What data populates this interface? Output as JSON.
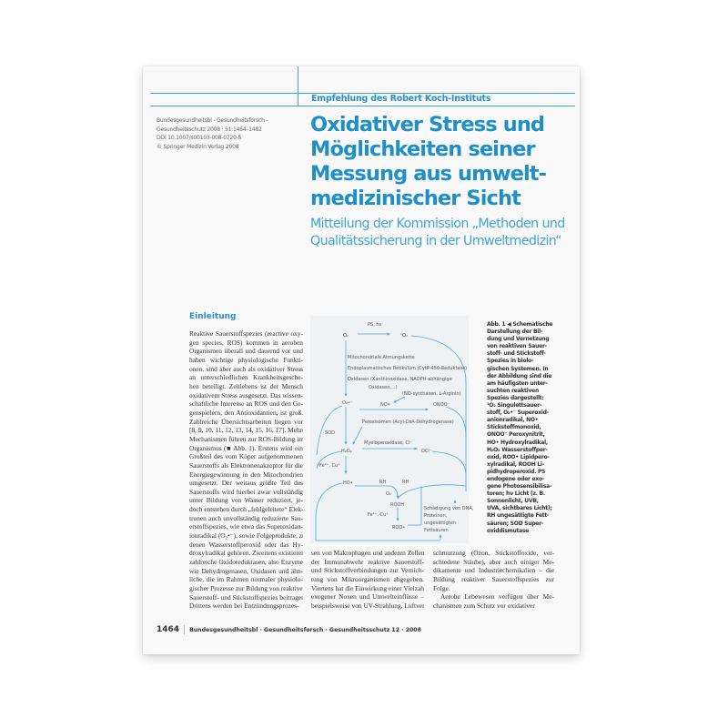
{
  "header": {
    "rubric": "Empfehlung des Robert Koch-Instituts",
    "meta_lines": [
      "Bundesgesundheitsbl - Gesundheitsforsch -",
      "Gesundheitsschutz 2008 · 51:1464–1482",
      "DOI 10.1007/s00103-008-0720-5",
      "© Springer Medizin Verlag 2008"
    ],
    "title": "Oxidativer Stress und Möglichkeiten seiner Messung aus umwelt-medizinischer Sicht",
    "title_lines": [
      "Oxidativer Stress und",
      "Möglichkeiten seiner",
      "Messung aus umwelt-",
      "medizinischer Sicht"
    ],
    "subtitle_lines": [
      "Mitteilung der Kommission „Methoden und",
      "Qualitätssicherung in der Umweltmedizin“"
    ]
  },
  "section_heading": "Einleitung",
  "body_column_1": [
    "Reaktive Sauerstoffspezies (reactive oxy-",
    "gen species, ROS) kommen in aeroben",
    "Organismen überall und dauernd vor und",
    "haben wichtige physiologische Funkti-",
    "onen, sind aber auch als oxidativer Stress",
    "an unterschiedlichen Krankheitsgesche-",
    "hen beteiligt. Zeitlebens ist der Mensch",
    "oxidativem Stress ausgesetzt. Das wissen-",
    "schaftliche Interesse an ROS und den Ge-",
    "genspielern, den Antioxidantien, ist groß.",
    "Zahlreiche Übersichtsarbeiten liegen vor",
    "[8, 9, 10, 11, 12, 13, 14, 15, 16, 17]. Mehrere",
    "Mechanismen führen zur ROS-Bildung im",
    "Organismus (■ Abb. 1). Erstens wird ein",
    "Großteil des vom Köper aufgenommenen",
    "Sauerstoffs als Elektronenakzeptor für die",
    "Energiegewinnung in den Mitochondrien",
    "umgesetzt. Der weitaus größte Teil des",
    "Sauerstoffs wird hierbei zwar vollständig",
    "unter Bildung von Wasser reduziert, je-",
    "doch entstehen durch „fehlgeleitete“ Elek-",
    "tronen auch unvollständig reduzierte Sau-",
    "erstoffspezies, wie etwa das Superoxidan-",
    "ionradikal (O₂•⁻), sowie Folgeprodukte, zu",
    "denen Wasserstoffperoxid oder das Hy-",
    "droxylradikal gehören. Zweitens existieren",
    "zahlreiche Oxidoreduktasen, also Enzyme",
    "wie Dehydrogenasen, Oxidasen und ähn-",
    "liche, die im Rahmen normaler physiolo-",
    "gischer Prozesse zur Bildung von reaktiven",
    "Sauerstoff- und Stickstoffspezies beitragen.",
    "Drittens werden bei Entzündungsprozes-"
  ],
  "body_column_2": [
    "sen von Makrophagen und anderen Zellen",
    "der Immunabwehr reaktive Sauerstoff-",
    "und Stickstoffverbindungen zur Vernich-",
    "tung von Mikroorganismen abgegeben.",
    "Viertens hat die Einwirkung einer Vielzahl",
    "exogener Noxen und Umwelteinflüsse –",
    "beispielsweise von UV-Strahlung, Luftver-"
  ],
  "body_column_3": [
    "schmutzung (Ozon, Stickstoffoxide, ver-",
    "schiedene Stäube), aber auch einiger Me-",
    "dikamente und Industriechemikalien – die",
    "Bildung reaktiver Sauerstoffspezies zur",
    "Folge.",
    "Aerobe Lebewesen verfügen über Me-",
    "chanismen zum Schutz vor oxidativer"
  ],
  "figure": {
    "labels": {
      "ps_hv": "PS, hν",
      "o2": "O₂",
      "singlet_o2": "¹O₂",
      "mito": "Mitochondriale Atmungskette",
      "er": "Endoplasmatisches Retikulum (CytP-450-Reduktase)",
      "oxidasen1": "Oxidasen (Xanthinoxidase, NADPH-abhängige",
      "oxidasen2": "Oxidasen,...)",
      "no_synth": "(NO-synthasen, L-Arginin)",
      "superoxide": "O₂•⁻",
      "no": "NO•",
      "onoo": "ONOO⁻",
      "peroxisomen": "Peroxisomen (Acyl-CoA-Dehydrogenase)",
      "sod": "SOD",
      "h2o2": "H₂O₂",
      "myelo": "Myeloperoxidase, Cl⁻",
      "ocl": "OCl⁻",
      "fe_cu_1": "Fe²⁺, Cu⁺",
      "ho": "HO•",
      "rh1": "RH",
      "rh2": "RH",
      "o2_b": "O₂",
      "rooh": "ROOH",
      "fe_cu_2": "Fe²⁺, Cu⁺",
      "roo": "ROO•",
      "damage": [
        "Schädigung von DNA,",
        "Proteinen,",
        "ungesättigten",
        "Fettsäuren"
      ]
    },
    "line_color": "#4aaad8"
  },
  "caption": {
    "lines": [
      "Abb. 1 ◀ Schematische",
      "Darstellung der Bil-",
      "dung und Vernetzung",
      "von reaktiven Sauer-",
      "stoff- und Stickstoff-",
      "Spezies in biolo-",
      "gischen Systemen. In",
      "der Abbildung sind die",
      "am häufigsten unter-",
      "suchten reaktiven",
      "Spezies dargestellt:",
      "¹O₂ Singulettsauer-",
      "stoff, O₂•⁻ Superoxid-",
      "anionradikal, NO•",
      "Stickstoffmonoxid,",
      "ONOO⁻ Peroxynitrit,",
      "HO• Hydroxylradikal,",
      "H₂O₂ Wasserstoffper-",
      "oxid, ROO• Lipidpero-",
      "xylradikal, ROOH Li-",
      "pidhydroperoxid. PS",
      "endogene oder exo-",
      "gene Photosensibilisa-",
      "toren; hν Licht (z. B.",
      "Sonnenlicht, UVB,",
      "UVA, sichtbares Licht);",
      "RH ungesättigte Fett-",
      "säuren; SOD Super-",
      "oxiddismutase"
    ]
  },
  "footer": {
    "page_number": "1464",
    "journal": "Bundesgesundheitsbl · Gesundheitsforsch · Gesundheitsschutz 12 · 2008"
  },
  "colors": {
    "accent": "#1f8fc7",
    "rule": "#3ea3d4",
    "figure_bg": "#eef2f4"
  }
}
